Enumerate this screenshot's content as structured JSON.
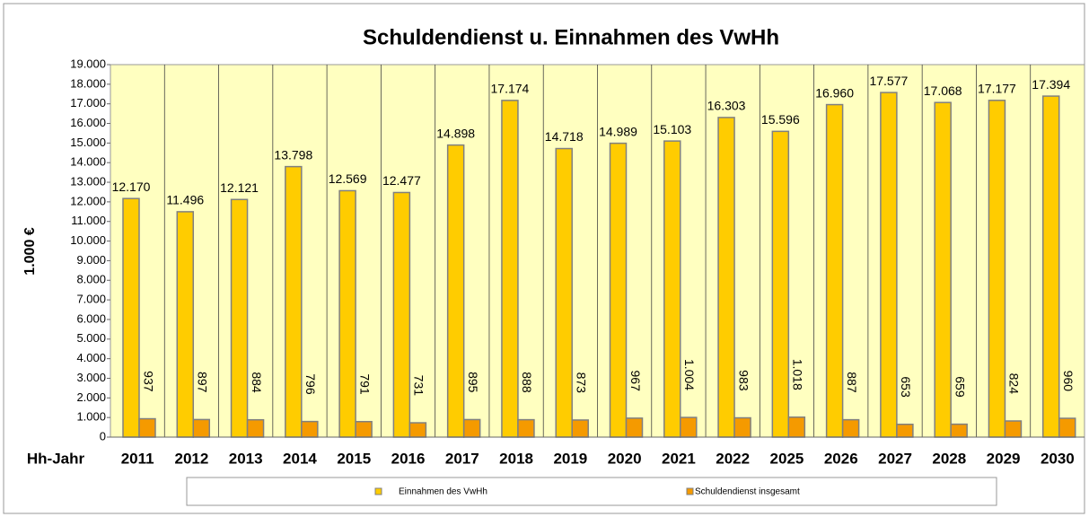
{
  "chart_data": {
    "type": "bar",
    "title": "Schuldendienst u. Einnahmen des VwHh",
    "y_label": "1.000 €",
    "x_label": "Hh-Jahr",
    "categories": [
      "2011",
      "2012",
      "2013",
      "2014",
      "2015",
      "2016",
      "2017",
      "2018",
      "2019",
      "2020",
      "2021",
      "2022",
      "2025",
      "2026",
      "2027",
      "2028",
      "2029",
      "2030"
    ],
    "series": [
      {
        "name": "Einnahmen des VwHh",
        "color": "#ffcc00",
        "values": [
          12170,
          11496,
          12121,
          13798,
          12569,
          12477,
          14898,
          17174,
          14718,
          14989,
          15103,
          16303,
          15596,
          16960,
          17577,
          17068,
          17177,
          17394
        ],
        "value_labels": [
          "12.170",
          "11.496",
          "12.121",
          "13.798",
          "12.569",
          "12.477",
          "14.898",
          "17.174",
          "14.718",
          "14.989",
          "15.103",
          "16.303",
          "15.596",
          "16.960",
          "17.577",
          "17.068",
          "17.177",
          "17.394"
        ]
      },
      {
        "name": "Schuldendienst insgesamt",
        "color": "#f59a00",
        "values": [
          937,
          897,
          884,
          796,
          791,
          731,
          895,
          888,
          873,
          967,
          1004,
          983,
          1018,
          887,
          653,
          659,
          824,
          960
        ],
        "value_labels": [
          "937",
          "897",
          "884",
          "796",
          "791",
          "731",
          "895",
          "888",
          "873",
          "967",
          "1.004",
          "983",
          "1.018",
          "887",
          "653",
          "659",
          "824",
          "960"
        ]
      }
    ],
    "ylim": [
      0,
      19000
    ],
    "yticks": [
      0,
      {
        "value": 1000,
        "label": "1.000"
      },
      {
        "value": 2000,
        "label": "2.000"
      },
      {
        "value": 3000,
        "label": "3.000"
      },
      {
        "value": 4000,
        "label": "4.000"
      },
      {
        "value": 5000,
        "label": "5.000"
      },
      {
        "value": 6000,
        "label": "6.000"
      },
      {
        "value": 7000,
        "label": "7.000"
      },
      {
        "value": 8000,
        "label": "8.000"
      },
      {
        "value": 9000,
        "label": "9.000"
      },
      {
        "value": 10000,
        "label": "10.000"
      },
      {
        "value": 11000,
        "label": "11.000"
      },
      {
        "value": 12000,
        "label": "12.000"
      },
      {
        "value": 13000,
        "label": "13.000"
      },
      {
        "value": 14000,
        "label": "14.000"
      },
      {
        "value": 15000,
        "label": "15.000"
      },
      {
        "value": 16000,
        "label": "16.000"
      },
      {
        "value": 17000,
        "label": "17.000"
      },
      {
        "value": 18000,
        "label": "18.000"
      },
      {
        "value": 19000,
        "label": "19.000"
      }
    ],
    "legend": "bottom"
  }
}
